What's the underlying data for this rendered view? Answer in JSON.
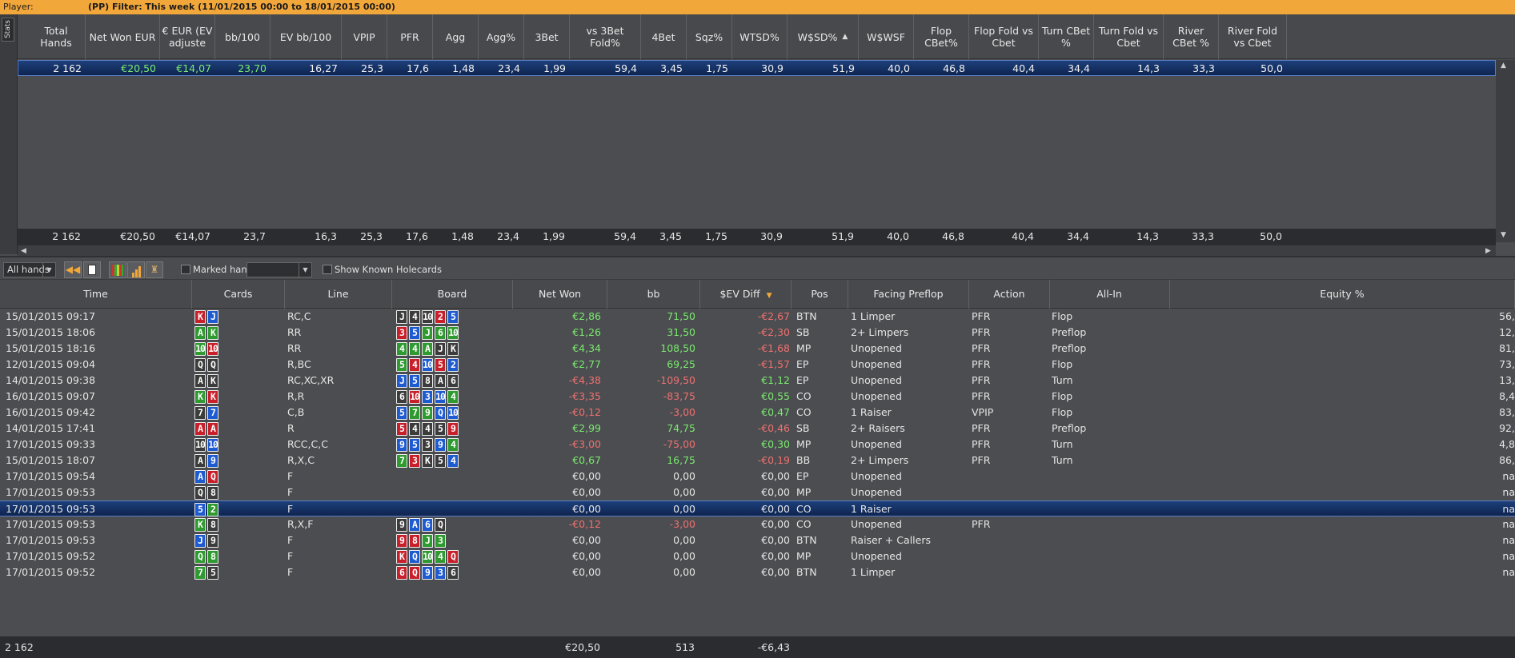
{
  "filterbar": {
    "player_label": "Player:",
    "player_tag": "(PP)",
    "filter_text": "Filter: This week (11/01/2015 00:00 to 18/01/2015 00:00)"
  },
  "stats_tab_label": "Stats",
  "stats": {
    "headers": [
      "Total Hands",
      "Net Won EUR",
      "€ EUR (EV adjuste",
      "bb/100",
      "EV bb/100",
      "VPIP",
      "PFR",
      "Agg",
      "Agg%",
      "3Bet",
      "vs 3Bet Fold%",
      "4Bet",
      "Sqz%",
      "WTSD%",
      "W$SD%",
      "W$WSF",
      "Flop CBet%",
      "Flop Fold vs Cbet",
      "Turn CBet %",
      "Turn Fold vs Cbet",
      "River CBet %",
      "River Fold vs Cbet"
    ],
    "sort_indicator": "▲",
    "row": [
      "2 162",
      "€20,50",
      "€14,07",
      "23,70",
      "16,27",
      "25,3",
      "17,6",
      "1,48",
      "23,4",
      "1,99",
      "59,4",
      "3,45",
      "1,75",
      "30,9",
      "51,9",
      "40,0",
      "46,8",
      "40,4",
      "34,4",
      "14,3",
      "33,3",
      "50,0"
    ],
    "total": [
      "2 162",
      "€20,50",
      "€14,07",
      "23,7",
      "16,3",
      "25,3",
      "17,6",
      "1,48",
      "23,4",
      "1,99",
      "59,4",
      "3,45",
      "1,75",
      "30,9",
      "51,9",
      "40,0",
      "46,8",
      "40,4",
      "34,4",
      "14,3",
      "33,3",
      "50,0"
    ]
  },
  "toolbar": {
    "hands_select": "All hands",
    "marked_hands_label": "Marked hands",
    "show_known_label": "Show Known Holecards"
  },
  "hands": {
    "headers": [
      "Time",
      "Cards",
      "Line",
      "Board",
      "Net Won",
      "bb",
      "$EV Diff",
      "Pos",
      "Facing Preflop",
      "Action",
      "All-In",
      "Equity %"
    ],
    "sort_indicator": "▼",
    "rows": [
      {
        "time": "15/01/2015 09:17",
        "cards": [
          [
            "K",
            "h"
          ],
          [
            "J",
            "d"
          ]
        ],
        "line": "RC,C",
        "board": [
          [
            "J",
            "s"
          ],
          [
            "4",
            "s"
          ],
          [
            "10",
            "s"
          ],
          [
            "2",
            "h"
          ],
          [
            "5",
            "d"
          ]
        ],
        "net": "€2,86",
        "bb": "71,50",
        "ev": "-€2,67",
        "pos": "BTN",
        "facing": "1 Limper",
        "action": "PFR",
        "allin": "Flop",
        "equity": "56,"
      },
      {
        "time": "15/01/2015 18:06",
        "cards": [
          [
            "A",
            "c"
          ],
          [
            "K",
            "c"
          ]
        ],
        "line": "RR",
        "board": [
          [
            "3",
            "h"
          ],
          [
            "5",
            "d"
          ],
          [
            "J",
            "c"
          ],
          [
            "6",
            "c"
          ],
          [
            "10",
            "c"
          ]
        ],
        "net": "€1,26",
        "bb": "31,50",
        "ev": "-€2,30",
        "pos": "SB",
        "facing": "2+ Limpers",
        "action": "PFR",
        "allin": "Preflop",
        "equity": "12,"
      },
      {
        "time": "15/01/2015 18:16",
        "cards": [
          [
            "10",
            "c"
          ],
          [
            "10",
            "h"
          ]
        ],
        "line": "RR",
        "board": [
          [
            "4",
            "c"
          ],
          [
            "4",
            "c"
          ],
          [
            "A",
            "c"
          ],
          [
            "J",
            "s"
          ],
          [
            "K",
            "s"
          ]
        ],
        "net": "€4,34",
        "bb": "108,50",
        "ev": "-€1,68",
        "pos": "MP",
        "facing": "Unopened",
        "action": "PFR",
        "allin": "Preflop",
        "equity": "81,"
      },
      {
        "time": "12/01/2015 09:04",
        "cards": [
          [
            "Q",
            "s"
          ],
          [
            "Q",
            "s"
          ]
        ],
        "line": "R,BC",
        "board": [
          [
            "5",
            "c"
          ],
          [
            "4",
            "h"
          ],
          [
            "10",
            "d"
          ],
          [
            "5",
            "h"
          ],
          [
            "2",
            "d"
          ]
        ],
        "net": "€2,77",
        "bb": "69,25",
        "ev": "-€1,57",
        "pos": "EP",
        "facing": "Unopened",
        "action": "PFR",
        "allin": "Flop",
        "equity": "73,"
      },
      {
        "time": "14/01/2015 09:38",
        "cards": [
          [
            "A",
            "s"
          ],
          [
            "K",
            "s"
          ]
        ],
        "line": "RC,XC,XR",
        "board": [
          [
            "J",
            "d"
          ],
          [
            "5",
            "d"
          ],
          [
            "8",
            "s"
          ],
          [
            "A",
            "s"
          ],
          [
            "6",
            "s"
          ]
        ],
        "net": "-€4,38",
        "bb": "-109,50",
        "ev": "€1,12",
        "pos": "EP",
        "facing": "Unopened",
        "action": "PFR",
        "allin": "Turn",
        "equity": "13,"
      },
      {
        "time": "16/01/2015 09:07",
        "cards": [
          [
            "K",
            "c"
          ],
          [
            "K",
            "h"
          ]
        ],
        "line": "R,R",
        "board": [
          [
            "6",
            "s"
          ],
          [
            "10",
            "h"
          ],
          [
            "3",
            "d"
          ],
          [
            "10",
            "d"
          ],
          [
            "4",
            "c"
          ]
        ],
        "net": "-€3,35",
        "bb": "-83,75",
        "ev": "€0,55",
        "pos": "CO",
        "facing": "Unopened",
        "action": "PFR",
        "allin": "Flop",
        "equity": "8,4"
      },
      {
        "time": "16/01/2015 09:42",
        "cards": [
          [
            "7",
            "s"
          ],
          [
            "7",
            "d"
          ]
        ],
        "line": "C,B",
        "board": [
          [
            "5",
            "d"
          ],
          [
            "7",
            "c"
          ],
          [
            "9",
            "c"
          ],
          [
            "Q",
            "d"
          ],
          [
            "10",
            "d"
          ]
        ],
        "net": "-€0,12",
        "bb": "-3,00",
        "ev": "€0,47",
        "pos": "CO",
        "facing": "1 Raiser",
        "action": "VPIP",
        "allin": "Flop",
        "equity": "83,"
      },
      {
        "time": "14/01/2015 17:41",
        "cards": [
          [
            "A",
            "h"
          ],
          [
            "A",
            "h"
          ]
        ],
        "line": "R",
        "board": [
          [
            "5",
            "h"
          ],
          [
            "4",
            "s"
          ],
          [
            "4",
            "s"
          ],
          [
            "5",
            "s"
          ],
          [
            "9",
            "h"
          ]
        ],
        "net": "€2,99",
        "bb": "74,75",
        "ev": "-€0,46",
        "pos": "SB",
        "facing": "2+ Raisers",
        "action": "PFR",
        "allin": "Preflop",
        "equity": "92,"
      },
      {
        "time": "17/01/2015 09:33",
        "cards": [
          [
            "10",
            "s"
          ],
          [
            "10",
            "d"
          ]
        ],
        "line": "RCC,C,C",
        "board": [
          [
            "9",
            "d"
          ],
          [
            "5",
            "d"
          ],
          [
            "3",
            "s"
          ],
          [
            "9",
            "d"
          ],
          [
            "4",
            "c"
          ]
        ],
        "net": "-€3,00",
        "bb": "-75,00",
        "ev": "€0,30",
        "pos": "MP",
        "facing": "Unopened",
        "action": "PFR",
        "allin": "Turn",
        "equity": "4,8"
      },
      {
        "time": "15/01/2015 18:07",
        "cards": [
          [
            "A",
            "s"
          ],
          [
            "9",
            "d"
          ]
        ],
        "line": "R,X,C",
        "board": [
          [
            "7",
            "c"
          ],
          [
            "3",
            "h"
          ],
          [
            "K",
            "s"
          ],
          [
            "5",
            "s"
          ],
          [
            "4",
            "d"
          ]
        ],
        "net": "€0,67",
        "bb": "16,75",
        "ev": "-€0,19",
        "pos": "BB",
        "facing": "2+ Limpers",
        "action": "PFR",
        "allin": "Turn",
        "equity": "86,"
      },
      {
        "time": "17/01/2015 09:54",
        "cards": [
          [
            "A",
            "d"
          ],
          [
            "Q",
            "h"
          ]
        ],
        "line": "F",
        "board": [],
        "net": "€0,00",
        "bb": "0,00",
        "ev": "€0,00",
        "pos": "EP",
        "facing": "Unopened",
        "action": "",
        "allin": "",
        "equity": "na"
      },
      {
        "time": "17/01/2015 09:53",
        "cards": [
          [
            "Q",
            "s"
          ],
          [
            "8",
            "s"
          ]
        ],
        "line": "F",
        "board": [],
        "net": "€0,00",
        "bb": "0,00",
        "ev": "€0,00",
        "pos": "MP",
        "facing": "Unopened",
        "action": "",
        "allin": "",
        "equity": "na"
      },
      {
        "time": "17/01/2015 09:53",
        "cards": [
          [
            "5",
            "d"
          ],
          [
            "2",
            "c"
          ]
        ],
        "line": "F",
        "board": [],
        "net": "€0,00",
        "bb": "0,00",
        "ev": "€0,00",
        "pos": "CO",
        "facing": "1 Raiser",
        "action": "",
        "allin": "",
        "equity": "na",
        "selected": true
      },
      {
        "time": "17/01/2015 09:53",
        "cards": [
          [
            "K",
            "c"
          ],
          [
            "8",
            "s"
          ]
        ],
        "line": "R,X,F",
        "board": [
          [
            "9",
            "s"
          ],
          [
            "A",
            "d"
          ],
          [
            "6",
            "d"
          ],
          [
            "Q",
            "s"
          ]
        ],
        "net": "-€0,12",
        "bb": "-3,00",
        "ev": "€0,00",
        "pos": "CO",
        "facing": "Unopened",
        "action": "PFR",
        "allin": "",
        "equity": "na"
      },
      {
        "time": "17/01/2015 09:53",
        "cards": [
          [
            "J",
            "d"
          ],
          [
            "9",
            "s"
          ]
        ],
        "line": "F",
        "board": [
          [
            "9",
            "h"
          ],
          [
            "8",
            "h"
          ],
          [
            "J",
            "c"
          ],
          [
            "3",
            "c"
          ]
        ],
        "net": "€0,00",
        "bb": "0,00",
        "ev": "€0,00",
        "pos": "BTN",
        "facing": "Raiser + Callers",
        "action": "",
        "allin": "",
        "equity": "na"
      },
      {
        "time": "17/01/2015 09:52",
        "cards": [
          [
            "Q",
            "c"
          ],
          [
            "8",
            "c"
          ]
        ],
        "line": "F",
        "board": [
          [
            "K",
            "h"
          ],
          [
            "Q",
            "d"
          ],
          [
            "10",
            "c"
          ],
          [
            "4",
            "c"
          ],
          [
            "Q",
            "h"
          ]
        ],
        "net": "€0,00",
        "bb": "0,00",
        "ev": "€0,00",
        "pos": "MP",
        "facing": "Unopened",
        "action": "",
        "allin": "",
        "equity": "na"
      },
      {
        "time": "17/01/2015 09:52",
        "cards": [
          [
            "7",
            "c"
          ],
          [
            "5",
            "s"
          ]
        ],
        "line": "F",
        "board": [
          [
            "6",
            "h"
          ],
          [
            "Q",
            "h"
          ],
          [
            "9",
            "d"
          ],
          [
            "3",
            "d"
          ],
          [
            "6",
            "s"
          ]
        ],
        "net": "€0,00",
        "bb": "0,00",
        "ev": "€0,00",
        "pos": "BTN",
        "facing": "1 Limper",
        "action": "",
        "allin": "",
        "equity": "na"
      }
    ],
    "footer": {
      "total": "2 162",
      "net": "€20,50",
      "bb": "513",
      "ev": "-€6,43"
    }
  }
}
